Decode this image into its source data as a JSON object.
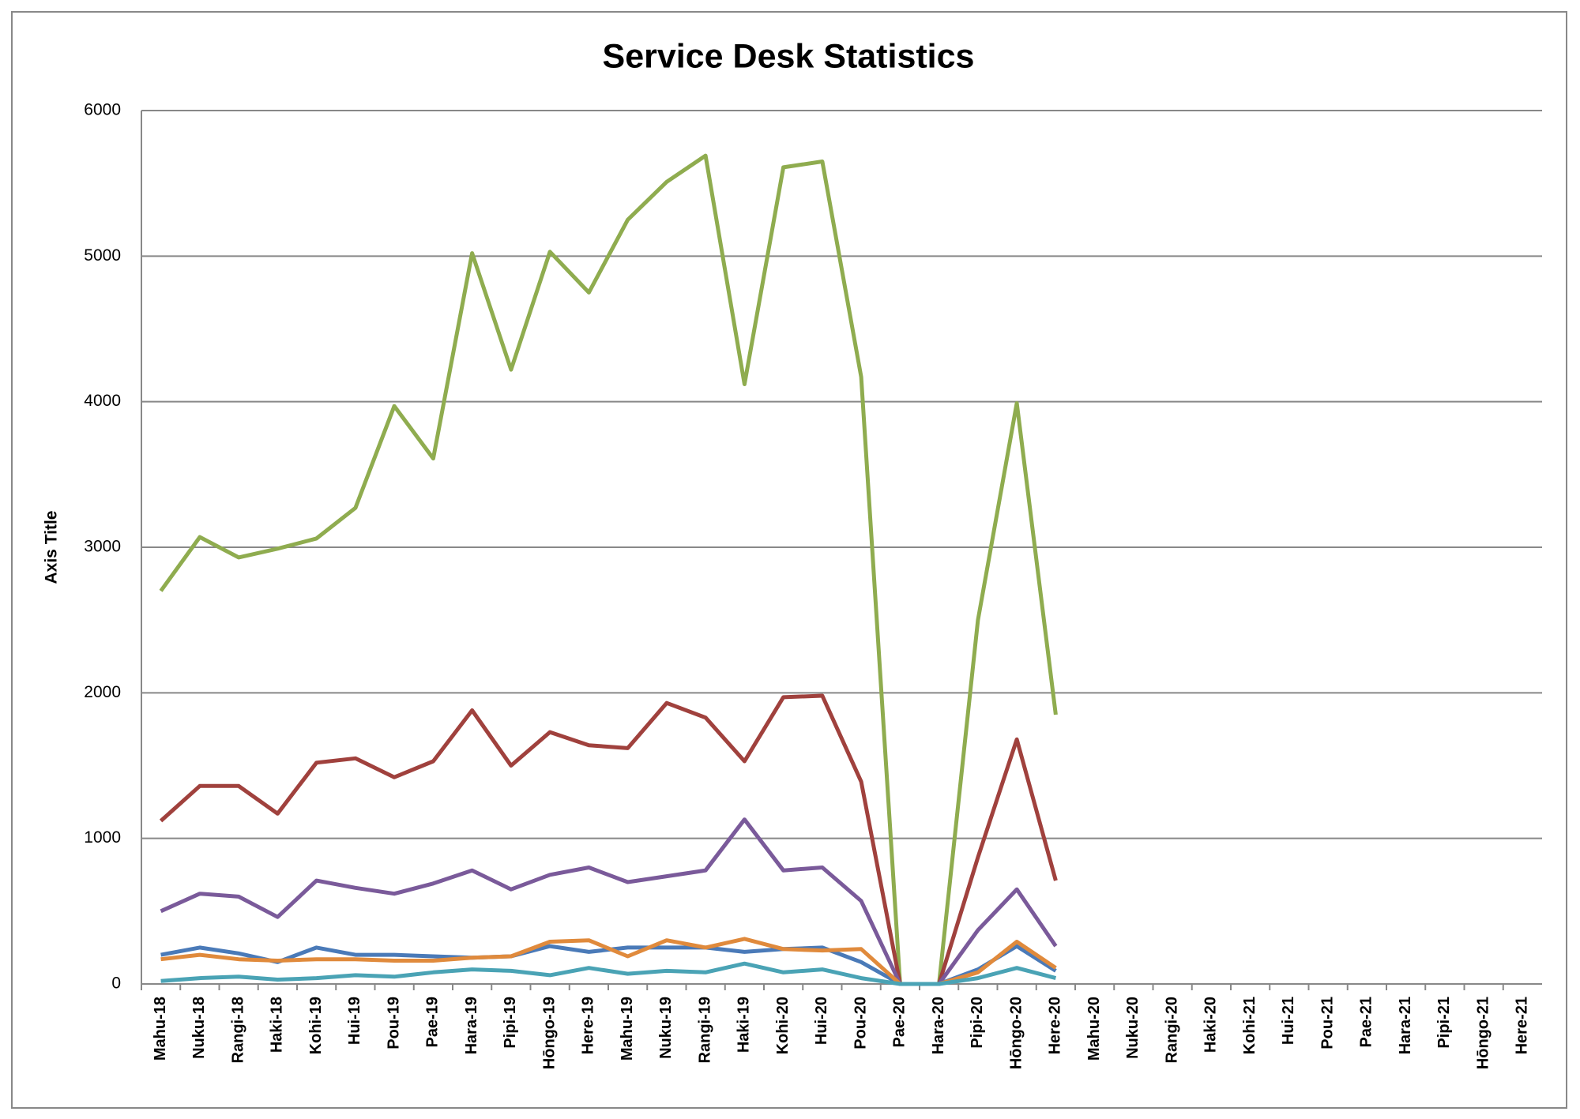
{
  "chart_data": {
    "type": "line",
    "title": "Service Desk Statistics",
    "y_label": "Axis Title",
    "categories": [
      "Mahu-18",
      "Nuku-18",
      "Rangi-18",
      "Haki-18",
      "Kohi-19",
      "Hui-19",
      "Pou-19",
      "Pae-19",
      "Hara-19",
      "Pipi-19",
      "Hōngo-19",
      "Here-19",
      "Mahu-19",
      "Nuku-19",
      "Rangi-19",
      "Haki-19",
      "Kohi-20",
      "Hui-20",
      "Pou-20",
      "Pae-20",
      "Hara-20",
      "Pipi-20",
      "Hōngo-20",
      "Here-20",
      "Mahu-20",
      "Nuku-20",
      "Rangi-20",
      "Haki-20",
      "Kohi-21",
      "Hui-21",
      "Pou-21",
      "Pae-21",
      "Hara-21",
      "Pipi-21",
      "Hōngo-21",
      "Here-21"
    ],
    "series": [
      {
        "color": "#8fac4f",
        "values": [
          2700,
          3070,
          2930,
          2990,
          3060,
          3270,
          3970,
          3610,
          5020,
          4220,
          5030,
          4750,
          5250,
          5510,
          5690,
          4120,
          5610,
          5650,
          4170,
          0,
          0,
          2500,
          3990,
          1850,
          null,
          null,
          null,
          null,
          null,
          null,
          null,
          null,
          null,
          null,
          null,
          null
        ]
      },
      {
        "color": "#a0413d",
        "values": [
          1120,
          1360,
          1360,
          1170,
          1520,
          1550,
          1420,
          1530,
          1880,
          1500,
          1730,
          1640,
          1620,
          1930,
          1830,
          1530,
          1970,
          1980,
          1390,
          0,
          0,
          870,
          1680,
          710,
          null,
          null,
          null,
          null,
          null,
          null,
          null,
          null,
          null,
          null,
          null,
          null
        ]
      },
      {
        "color": "#7a5a9a",
        "values": [
          500,
          620,
          600,
          460,
          710,
          660,
          620,
          690,
          780,
          650,
          750,
          800,
          700,
          740,
          780,
          1130,
          780,
          800,
          570,
          0,
          0,
          370,
          650,
          260,
          null,
          null,
          null,
          null,
          null,
          null,
          null,
          null,
          null,
          null,
          null,
          null
        ]
      },
      {
        "color": "#4a7ab8",
        "values": [
          200,
          250,
          210,
          150,
          250,
          200,
          200,
          190,
          180,
          190,
          260,
          220,
          250,
          250,
          250,
          220,
          240,
          250,
          150,
          0,
          0,
          100,
          260,
          90,
          null,
          null,
          null,
          null,
          null,
          null,
          null,
          null,
          null,
          null,
          null,
          null
        ]
      },
      {
        "color": "#e08a3c",
        "values": [
          170,
          200,
          170,
          160,
          170,
          170,
          160,
          160,
          180,
          190,
          290,
          300,
          190,
          300,
          250,
          310,
          240,
          230,
          240,
          0,
          0,
          80,
          290,
          110,
          null,
          null,
          null,
          null,
          null,
          null,
          null,
          null,
          null,
          null,
          null,
          null
        ]
      },
      {
        "color": "#4aa3b5",
        "values": [
          20,
          40,
          50,
          30,
          40,
          60,
          50,
          80,
          100,
          90,
          60,
          110,
          70,
          90,
          80,
          140,
          80,
          100,
          40,
          0,
          0,
          40,
          110,
          40,
          null,
          null,
          null,
          null,
          null,
          null,
          null,
          null,
          null,
          null,
          null,
          null
        ]
      }
    ],
    "ylim": [
      0,
      6000
    ],
    "yticks": [
      0,
      1000,
      2000,
      3000,
      4000,
      5000,
      6000
    ],
    "grid": true
  }
}
